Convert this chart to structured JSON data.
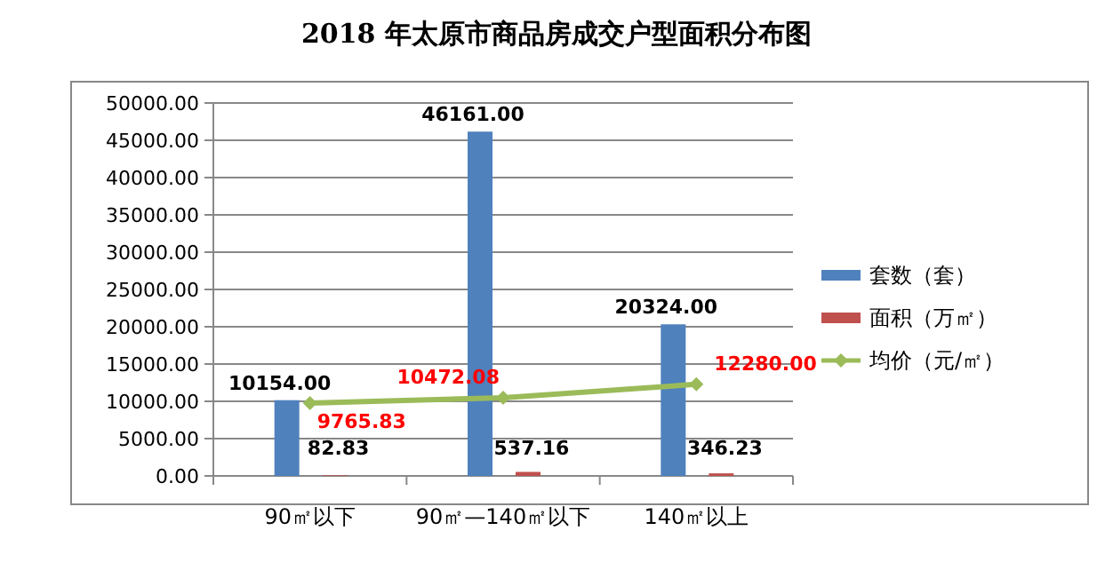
{
  "chart_data": {
    "type": "bar",
    "title": "2018 年太原市商品房成交户型面积分布图",
    "categories": [
      "90㎡以下",
      "90㎡—140㎡以下",
      "140㎡以上"
    ],
    "series": [
      {
        "name": "套数（套）",
        "color": "#4f81bd",
        "values": [
          10154,
          46161,
          20324
        ],
        "value_labels": [
          "10154.00",
          "46161.00",
          "20324.00"
        ]
      },
      {
        "name": "面积（万㎡）",
        "color": "#c0504d",
        "values": [
          82.83,
          537.16,
          346.23
        ],
        "value_labels": [
          "82.83",
          "537.16",
          "346.23"
        ]
      },
      {
        "name": "均价（元/㎡）",
        "type": "line",
        "color": "#9bbb59",
        "marker": "diamond",
        "values": [
          9765.83,
          10472.08,
          12280
        ],
        "value_labels": [
          "9765.83",
          "10472.08",
          "12280.00"
        ]
      }
    ],
    "ylim": [
      0,
      50000
    ],
    "yticks": [
      {
        "value": 0,
        "label": "0.00"
      },
      {
        "value": 5000,
        "label": "5000.00"
      },
      {
        "value": 10000,
        "label": "10000.00"
      },
      {
        "value": 15000,
        "label": "15000.00"
      },
      {
        "value": 20000,
        "label": "20000.00"
      },
      {
        "value": 25000,
        "label": "25000.00"
      },
      {
        "value": 30000,
        "label": "30000.00"
      },
      {
        "value": 35000,
        "label": "35000.00"
      },
      {
        "value": 40000,
        "label": "40000.00"
      },
      {
        "value": 45000,
        "label": "45000.00"
      },
      {
        "value": 50000,
        "label": "50000.00"
      }
    ],
    "grid": "y",
    "legend": "right"
  }
}
